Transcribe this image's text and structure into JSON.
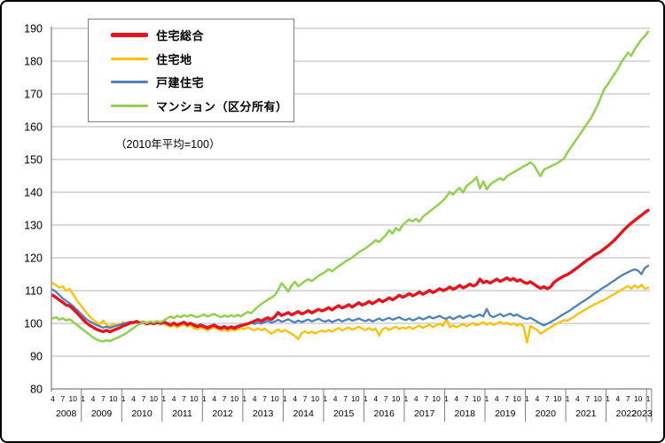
{
  "chart_data": {
    "type": "line",
    "note": "（2010年平均=100）",
    "legend_position": "top-left",
    "grid": true,
    "y_axis": {
      "min": 80,
      "max": 190,
      "step": 10,
      "ticks": [
        190,
        180,
        170,
        160,
        150,
        140,
        130,
        120,
        110,
        100,
        90,
        80
      ]
    },
    "x_axis": {
      "start_year": 2008,
      "start_month": 4,
      "end_year": 2023,
      "end_month": 1,
      "tick_months": [
        1,
        4,
        7,
        10
      ],
      "years": [
        2008,
        2009,
        2010,
        2011,
        2012,
        2013,
        2014,
        2015,
        2016,
        2017,
        2018,
        2019,
        2020,
        2021,
        2022,
        2023
      ]
    },
    "series": [
      {
        "id": "land",
        "name": "住宅地",
        "color": "#ffc000",
        "width": 2.3,
        "values": [
          112.3,
          111.6,
          110.9,
          111.3,
          109.9,
          110.5,
          108.9,
          107.3,
          105.9,
          104.6,
          103.3,
          102.1,
          101.1,
          100.3,
          99.7,
          100.9,
          99.5,
          99.1,
          99.9,
          99.3,
          99.7,
          100.4,
          99.8,
          100.3,
          100.0,
          100.6,
          99.9,
          100.4,
          99.7,
          100.2,
          99.8,
          100.1,
          99.8,
          100.0,
          99.4,
          99.0,
          99.5,
          98.8,
          99.3,
          99.8,
          99.0,
          99.4,
          98.6,
          98.2,
          98.8,
          98.4,
          97.8,
          98.4,
          98.9,
          98.2,
          97.8,
          98.3,
          97.6,
          98.1,
          97.8,
          98.2,
          98.6,
          98.2,
          98.8,
          98.3,
          97.8,
          98.5,
          97.9,
          98.4,
          97.6,
          96.8,
          97.5,
          98.2,
          97.4,
          98.0,
          97.4,
          96.8,
          96.2,
          95.2,
          97.0,
          97.6,
          97.0,
          97.5,
          96.9,
          97.4,
          97.8,
          97.4,
          98.0,
          97.5,
          98.1,
          98.6,
          97.9,
          98.3,
          98.8,
          98.1,
          98.5,
          99.0,
          98.4,
          98.0,
          98.6,
          97.9,
          98.4,
          96.3,
          98.2,
          98.7,
          98.0,
          98.5,
          99.0,
          98.3,
          98.8,
          98.4,
          99.0,
          98.3,
          98.8,
          99.3,
          98.6,
          99.1,
          99.6,
          98.9,
          99.4,
          99.9,
          99.2,
          101.4,
          98.9,
          99.4,
          98.8,
          99.3,
          99.8,
          99.1,
          99.6,
          100.1,
          99.4,
          99.9,
          100.4,
          99.6,
          100.2,
          99.5,
          100.0,
          100.5,
          99.8,
          100.2,
          99.6,
          100.0,
          99.3,
          99.8,
          99.0,
          94.2,
          99.2,
          98.6,
          98.0,
          96.8,
          97.5,
          98.2,
          98.8,
          99.4,
          100.0,
          100.5,
          101.0,
          100.8,
          101.4,
          102.0,
          102.8,
          103.4,
          104.0,
          104.6,
          105.2,
          105.8,
          106.2,
          106.8,
          107.2,
          107.8,
          108.4,
          109.0,
          109.6,
          110.2,
          110.8,
          111.4,
          110.6,
          111.6,
          110.8,
          111.8,
          110.6,
          110.9
        ]
      },
      {
        "id": "detached",
        "name": "戸建住宅",
        "color": "#4f81bd",
        "width": 2.3,
        "values": [
          110.3,
          109.6,
          108.6,
          107.6,
          106.9,
          106.1,
          105.3,
          104.3,
          103.3,
          102.3,
          101.3,
          100.6,
          100.1,
          99.5,
          99.1,
          98.7,
          99.0,
          98.6,
          99.0,
          99.3,
          99.6,
          99.9,
          100.2,
          100.5,
          100.3,
          100.7,
          100.1,
          100.5,
          100.0,
          100.3,
          100.1,
          100.4,
          100.1,
          100.3,
          99.9,
          99.6,
          100.1,
          99.7,
          100.1,
          100.5,
          99.9,
          100.2,
          99.7,
          99.3,
          99.7,
          99.3,
          98.9,
          99.3,
          99.7,
          99.1,
          98.8,
          99.2,
          98.7,
          99.1,
          98.9,
          99.3,
          99.6,
          99.4,
          99.8,
          100.2,
          99.8,
          100.3,
          99.9,
          100.4,
          100.8,
          100.2,
          100.6,
          101.1,
          100.5,
          100.8,
          101.3,
          100.7,
          100.3,
          100.9,
          100.4,
          100.8,
          101.2,
          100.6,
          101.0,
          101.4,
          100.9,
          100.5,
          101.0,
          100.4,
          100.8,
          101.2,
          100.6,
          101.0,
          101.4,
          100.8,
          101.1,
          101.5,
          101.0,
          100.7,
          101.2,
          100.6,
          101.0,
          101.5,
          100.9,
          101.3,
          101.7,
          101.1,
          101.5,
          101.9,
          101.3,
          101.0,
          101.5,
          100.9,
          101.3,
          101.8,
          101.2,
          101.6,
          102.1,
          101.5,
          101.9,
          102.3,
          101.7,
          101.4,
          102.0,
          101.3,
          101.8,
          102.3,
          101.6,
          102.1,
          102.5,
          101.9,
          102.3,
          102.7,
          102.1,
          104.4,
          102.4,
          101.9,
          102.4,
          102.9,
          102.2,
          102.6,
          103.0,
          102.3,
          102.7,
          102.1,
          101.6,
          101.3,
          101.7,
          101.1,
          100.5,
          99.9,
          99.4,
          99.9,
          100.4,
          101.0,
          101.6,
          102.3,
          102.9,
          103.5,
          104.1,
          104.9,
          105.5,
          106.3,
          106.9,
          107.6,
          108.3,
          109.1,
          109.7,
          110.5,
          111.1,
          111.7,
          112.5,
          113.1,
          113.9,
          114.5,
          115.1,
          115.6,
          116.1,
          116.5,
          116.1,
          115.0,
          116.9,
          117.6
        ]
      },
      {
        "id": "total",
        "name": "住宅総合",
        "color": "#e8131c",
        "width": 3.4,
        "values": [
          108.6,
          107.9,
          107.1,
          106.4,
          105.6,
          105.3,
          104.4,
          103.4,
          102.3,
          101.2,
          100.2,
          99.4,
          98.8,
          98.2,
          97.8,
          97.5,
          97.9,
          97.4,
          97.9,
          98.3,
          98.7,
          99.3,
          99.6,
          100.1,
          100.3,
          100.6,
          100.0,
          100.4,
          99.8,
          100.2,
          99.9,
          100.3,
          100.0,
          100.4,
          100.0,
          99.5,
          100.1,
          99.5,
          99.9,
          100.3,
          99.6,
          100.0,
          99.4,
          99.0,
          99.4,
          99.0,
          98.6,
          99.1,
          99.4,
          98.8,
          98.5,
          99.0,
          98.4,
          98.9,
          98.5,
          99.0,
          99.3,
          99.6,
          99.9,
          100.3,
          100.7,
          101.2,
          100.7,
          101.3,
          101.7,
          101.2,
          102.0,
          103.3,
          102.4,
          102.8,
          103.3,
          102.6,
          103.1,
          103.6,
          102.9,
          103.3,
          103.9,
          103.2,
          103.7,
          104.3,
          103.8,
          104.2,
          104.8,
          104.1,
          104.8,
          105.4,
          104.7,
          105.1,
          105.7,
          105.0,
          105.6,
          106.3,
          105.6,
          106.0,
          106.7,
          106.0,
          106.6,
          107.3,
          106.6,
          107.1,
          107.8,
          107.2,
          107.8,
          108.6,
          108.0,
          108.4,
          109.1,
          108.4,
          108.9,
          109.6,
          108.9,
          109.4,
          110.1,
          109.4,
          109.9,
          110.6,
          110.0,
          110.4,
          111.1,
          110.4,
          110.9,
          111.6,
          110.8,
          111.3,
          112.0,
          111.4,
          111.9,
          113.5,
          112.4,
          112.9,
          112.3,
          112.9,
          113.5,
          112.8,
          113.3,
          113.9,
          113.2,
          113.7,
          112.9,
          113.3,
          112.6,
          112.2,
          112.7,
          112.0,
          111.3,
          110.7,
          111.2,
          110.6,
          111.1,
          112.5,
          113.3,
          113.9,
          114.5,
          114.9,
          115.5,
          116.3,
          117.0,
          117.8,
          118.6,
          119.4,
          120.0,
          120.8,
          121.4,
          122.0,
          122.8,
          123.6,
          124.5,
          125.4,
          126.5,
          127.6,
          128.7,
          129.7,
          130.6,
          131.4,
          132.2,
          133.0,
          133.8,
          134.5
        ]
      },
      {
        "id": "condo",
        "name": "マンション（区分所有）",
        "color": "#92d050",
        "width": 2.5,
        "values": [
          101.5,
          101.9,
          101.1,
          101.6,
          100.9,
          101.3,
          100.5,
          99.7,
          98.9,
          98.1,
          97.3,
          96.5,
          95.7,
          95.1,
          94.7,
          94.5,
          94.9,
          94.6,
          95.1,
          95.5,
          96.0,
          96.5,
          97.1,
          97.9,
          98.6,
          99.3,
          99.9,
          100.4,
          100.1,
          100.6,
          100.3,
          100.7,
          100.4,
          100.9,
          101.5,
          102.1,
          101.6,
          102.3,
          101.9,
          102.5,
          102.1,
          102.6,
          102.2,
          101.9,
          102.3,
          102.7,
          102.1,
          102.5,
          102.9,
          102.3,
          101.9,
          102.4,
          102.0,
          102.5,
          102.1,
          102.6,
          102.2,
          102.9,
          103.5,
          103.1,
          104.1,
          105.1,
          105.9,
          106.6,
          107.3,
          107.9,
          108.6,
          110.1,
          112.3,
          111.1,
          109.7,
          111.6,
          112.7,
          111.3,
          112.1,
          112.9,
          113.5,
          112.9,
          113.7,
          114.5,
          115.1,
          115.7,
          116.5,
          115.9,
          116.7,
          117.5,
          118.1,
          118.9,
          119.5,
          120.1,
          120.9,
          121.7,
          122.3,
          122.9,
          123.7,
          124.5,
          125.4,
          124.8,
          125.9,
          126.9,
          128.4,
          127.4,
          129.1,
          128.3,
          130.0,
          130.9,
          131.7,
          131.1,
          131.9,
          131.0,
          132.5,
          133.3,
          134.1,
          134.9,
          135.7,
          136.5,
          137.5,
          138.6,
          140.1,
          139.3,
          140.6,
          141.3,
          139.9,
          141.9,
          142.7,
          143.5,
          144.6,
          141.1,
          143.3,
          140.9,
          142.3,
          143.1,
          143.7,
          144.3,
          143.7,
          144.9,
          145.5,
          146.1,
          146.7,
          147.3,
          147.9,
          148.4,
          149.1,
          148.3,
          146.6,
          144.9,
          146.9,
          147.4,
          147.9,
          148.4,
          148.9,
          149.6,
          150.3,
          152.1,
          153.6,
          155.1,
          156.6,
          158.1,
          159.6,
          161.1,
          162.6,
          164.6,
          166.6,
          169.1,
          171.6,
          172.9,
          174.6,
          176.1,
          177.6,
          179.6,
          181.1,
          182.6,
          181.6,
          183.6,
          185.1,
          186.6,
          187.6,
          189.0
        ]
      }
    ],
    "legend_order": [
      "total",
      "land",
      "detached",
      "condo"
    ]
  }
}
